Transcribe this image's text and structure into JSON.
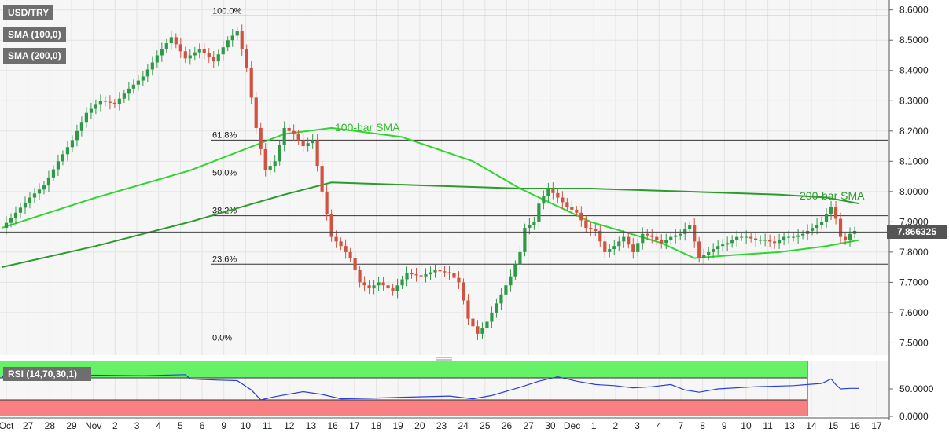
{
  "chart_data": {
    "type": "candlestick",
    "symbol": "USD/TRY",
    "legend": [
      "USD/TRY",
      "SMA (100,0)",
      "SMA (200,0)"
    ],
    "current_price_label": "7.866325",
    "current_price": 7.866325,
    "y_axis": {
      "range": [
        7.47,
        8.62
      ],
      "ticks": [
        "8.6000",
        "8.5000",
        "8.4000",
        "8.3000",
        "8.2000",
        "8.1000",
        "8.0000",
        "7.9000",
        "7.8000",
        "7.7000",
        "7.6000",
        "7.5000"
      ]
    },
    "x_axis": {
      "labels": [
        "Oct",
        "27",
        "28",
        "29",
        "Nov",
        "2",
        "3",
        "4",
        "5",
        "6",
        "9",
        "10",
        "11",
        "12",
        "13",
        "16",
        "17",
        "18",
        "19",
        "20",
        "23",
        "24",
        "25",
        "26",
        "27",
        "30",
        "Dec",
        "1",
        "2",
        "3",
        "4",
        "7",
        "8",
        "9",
        "10",
        "11",
        "13",
        "14",
        "15",
        "16",
        "17"
      ]
    },
    "fibonacci_levels": [
      {
        "label": "100.0%",
        "price": 8.58
      },
      {
        "label": "61.8%",
        "price": 8.17
      },
      {
        "label": "50.0%",
        "price": 8.045
      },
      {
        "label": "38.2%",
        "price": 7.92
      },
      {
        "label": "23.6%",
        "price": 7.76
      },
      {
        "label": "0.0%",
        "price": 7.5
      }
    ],
    "annotations": [
      {
        "text": "100-bar SMA"
      },
      {
        "text": "200-bar SMA"
      }
    ],
    "price_path": [
      [
        0,
        7.88
      ],
      [
        3,
        7.93
      ],
      [
        6,
        7.98
      ],
      [
        9,
        8.02
      ],
      [
        12,
        8.1
      ],
      [
        15,
        8.17
      ],
      [
        18,
        8.26
      ],
      [
        21,
        8.3
      ],
      [
        24,
        8.29
      ],
      [
        27,
        8.34
      ],
      [
        30,
        8.38
      ],
      [
        33,
        8.45
      ],
      [
        36,
        8.51
      ],
      [
        39,
        8.44
      ],
      [
        42,
        8.47
      ],
      [
        45,
        8.43
      ],
      [
        48,
        8.5
      ],
      [
        50,
        8.53
      ],
      [
        52,
        8.41
      ],
      [
        54,
        8.21
      ],
      [
        56,
        8.07
      ],
      [
        58,
        8.1
      ],
      [
        60,
        8.21
      ],
      [
        62,
        8.19
      ],
      [
        64,
        8.15
      ],
      [
        66,
        8.17
      ],
      [
        68,
        8.0
      ],
      [
        70,
        7.85
      ],
      [
        72,
        7.82
      ],
      [
        74,
        7.78
      ],
      [
        76,
        7.7
      ],
      [
        78,
        7.68
      ],
      [
        80,
        7.7
      ],
      [
        83,
        7.67
      ],
      [
        86,
        7.73
      ],
      [
        89,
        7.72
      ],
      [
        92,
        7.74
      ],
      [
        95,
        7.73
      ],
      [
        97,
        7.7
      ],
      [
        99,
        7.58
      ],
      [
        101,
        7.53
      ],
      [
        103,
        7.57
      ],
      [
        106,
        7.66
      ],
      [
        108,
        7.72
      ],
      [
        110,
        7.8
      ],
      [
        111,
        7.88
      ],
      [
        113,
        7.9
      ],
      [
        114,
        7.96
      ],
      [
        116,
        8.01
      ],
      [
        118,
        7.98
      ],
      [
        120,
        7.95
      ],
      [
        122,
        7.93
      ],
      [
        124,
        7.88
      ],
      [
        126,
        7.87
      ],
      [
        128,
        7.8
      ],
      [
        130,
        7.82
      ],
      [
        132,
        7.85
      ],
      [
        134,
        7.8
      ],
      [
        136,
        7.86
      ],
      [
        138,
        7.85
      ],
      [
        140,
        7.83
      ],
      [
        142,
        7.85
      ],
      [
        144,
        7.86
      ],
      [
        146,
        7.89
      ],
      [
        148,
        7.78
      ],
      [
        150,
        7.8
      ],
      [
        152,
        7.82
      ],
      [
        154,
        7.83
      ],
      [
        156,
        7.85
      ],
      [
        158,
        7.85
      ],
      [
        160,
        7.84
      ],
      [
        162,
        7.84
      ],
      [
        164,
        7.83
      ],
      [
        166,
        7.85
      ],
      [
        168,
        7.85
      ],
      [
        170,
        7.86
      ],
      [
        172,
        7.88
      ],
      [
        174,
        7.9
      ],
      [
        176,
        7.95
      ],
      [
        177,
        7.91
      ],
      [
        178,
        7.85
      ],
      [
        179,
        7.84
      ],
      [
        180,
        7.86
      ],
      [
        181,
        7.87
      ]
    ],
    "sma_100": [
      [
        0,
        7.88
      ],
      [
        20,
        7.98
      ],
      [
        40,
        8.07
      ],
      [
        60,
        8.19
      ],
      [
        70,
        8.21
      ],
      [
        85,
        8.18
      ],
      [
        100,
        8.1
      ],
      [
        110,
        8.01
      ],
      [
        125,
        7.9
      ],
      [
        140,
        7.83
      ],
      [
        147,
        7.78
      ],
      [
        155,
        7.79
      ],
      [
        165,
        7.8
      ],
      [
        175,
        7.82
      ],
      [
        182,
        7.84
      ]
    ],
    "sma_200": [
      [
        0,
        7.75
      ],
      [
        20,
        7.82
      ],
      [
        40,
        7.9
      ],
      [
        60,
        7.99
      ],
      [
        70,
        8.03
      ],
      [
        90,
        8.02
      ],
      [
        110,
        8.01
      ],
      [
        125,
        8.01
      ],
      [
        145,
        8.0
      ],
      [
        165,
        7.99
      ],
      [
        175,
        7.98
      ],
      [
        182,
        7.96
      ]
    ],
    "rsi": {
      "label": "RSI (14,70,30,1)",
      "overbought": 70,
      "oversold": 30,
      "ticks": [
        "50.0000",
        "0.0000"
      ],
      "ylim": [
        0,
        100
      ],
      "values": [
        [
          0,
          72
        ],
        [
          10,
          73
        ],
        [
          20,
          75
        ],
        [
          30,
          74
        ],
        [
          39,
          76
        ],
        [
          40,
          68
        ],
        [
          46,
          66
        ],
        [
          50,
          65
        ],
        [
          53,
          48
        ],
        [
          55,
          30
        ],
        [
          58,
          36
        ],
        [
          64,
          45
        ],
        [
          68,
          40
        ],
        [
          72,
          32
        ],
        [
          78,
          33
        ],
        [
          86,
          35
        ],
        [
          95,
          37
        ],
        [
          100,
          32
        ],
        [
          104,
          38
        ],
        [
          110,
          53
        ],
        [
          114,
          64
        ],
        [
          118,
          72
        ],
        [
          122,
          64
        ],
        [
          126,
          58
        ],
        [
          130,
          56
        ],
        [
          134,
          52
        ],
        [
          138,
          54
        ],
        [
          142,
          58
        ],
        [
          145,
          48
        ],
        [
          148,
          44
        ],
        [
          152,
          50
        ],
        [
          160,
          54
        ],
        [
          168,
          56
        ],
        [
          174,
          60
        ],
        [
          176,
          68
        ],
        [
          177,
          58
        ],
        [
          178,
          50
        ],
        [
          180,
          51
        ],
        [
          182,
          51
        ]
      ]
    },
    "colors": {
      "bull": "#2f9a46",
      "bear": "#d0523f",
      "sma_100": "#2fd62f",
      "sma_200": "#2d9a2d",
      "rsi_line": "#2a3fd8",
      "overbought_fill": "#66f266",
      "oversold_fill": "#f98080",
      "plot_bg": "#f6f6f6"
    }
  }
}
